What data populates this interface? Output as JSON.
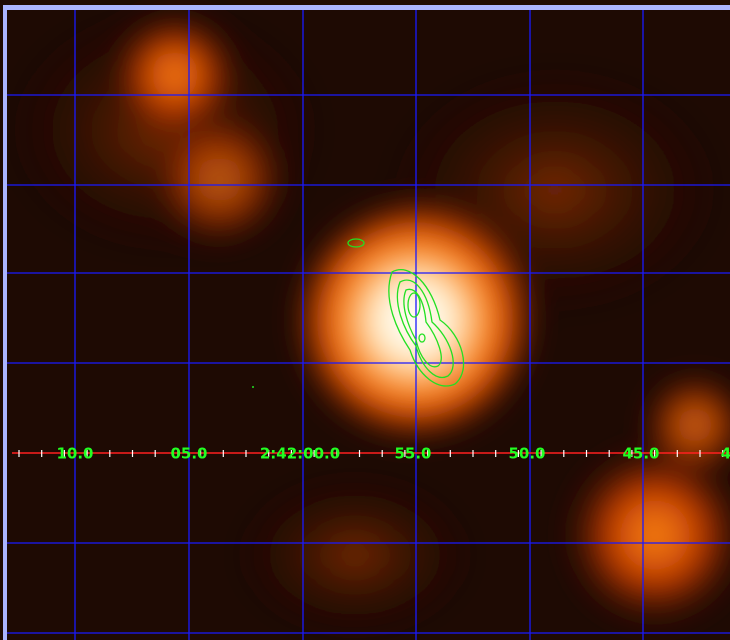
{
  "axis": {
    "labels": [
      "10.0",
      "05.0",
      "2:42:00.0",
      "55.0",
      "50.0",
      "45.0",
      "4"
    ]
  }
}
